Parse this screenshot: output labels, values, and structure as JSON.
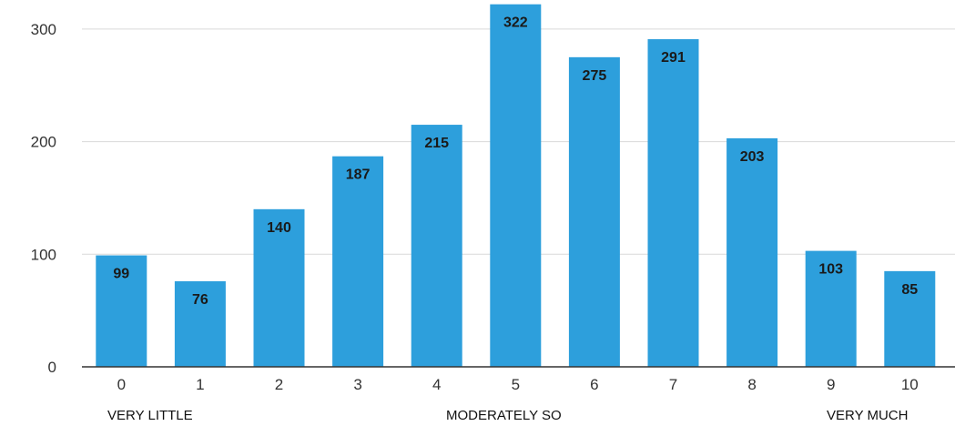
{
  "chart_data": {
    "type": "bar",
    "categories": [
      "0",
      "1",
      "2",
      "3",
      "4",
      "5",
      "6",
      "7",
      "8",
      "9",
      "10"
    ],
    "values": [
      99,
      76,
      140,
      187,
      215,
      322,
      275,
      291,
      203,
      103,
      85
    ],
    "yticks": [
      0,
      100,
      200,
      300
    ],
    "ylim": [
      0,
      325
    ],
    "grid": true,
    "bar_color": "#2d9fdc",
    "scale_labels": {
      "low": "VERY LITTLE",
      "mid": "MODERATELY SO",
      "high": "VERY MUCH"
    }
  }
}
